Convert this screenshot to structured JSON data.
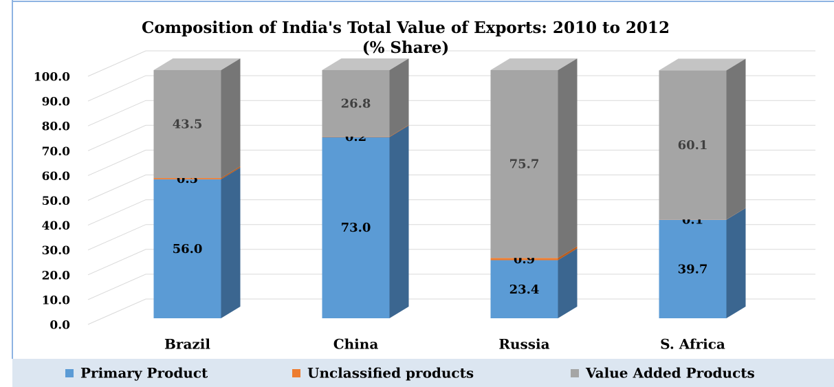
{
  "chart_data": {
    "type": "stacked-bar-3d",
    "title": "Composition of India's Total Value of Exports: 2010 to 2012 (% Share)",
    "categories": [
      "Brazil",
      "China",
      "Russia",
      "S. Africa"
    ],
    "series": [
      {
        "name": "Primary Product",
        "color": "#5b9bd5",
        "side_color": "#3b6690",
        "label_color": "#000000",
        "values": [
          56.0,
          73.0,
          23.4,
          39.7
        ],
        "value_labels": [
          "56.0",
          "73.0",
          "23.4",
          "39.7"
        ]
      },
      {
        "name": "Unclassified products",
        "color": "#ed7d31",
        "side_color": "#b85d20",
        "label_color": "#000000",
        "values": [
          0.5,
          0.2,
          0.9,
          0.1
        ],
        "value_labels": [
          "0.5",
          "0.2",
          "0.9",
          "0.1"
        ]
      },
      {
        "name": "Value Added Products",
        "color": "#a5a5a5",
        "side_color": "#767676",
        "label_color": "#404040",
        "values": [
          43.5,
          26.8,
          75.7,
          60.1
        ],
        "value_labels": [
          "43.5",
          "26.8",
          "75.7",
          "60.1"
        ]
      }
    ],
    "ylim": [
      0,
      100
    ],
    "yticks": [
      {
        "value": 0,
        "label": "0.0"
      },
      {
        "value": 10,
        "label": "10.0"
      },
      {
        "value": 20,
        "label": "20.0"
      },
      {
        "value": 30,
        "label": "30.0"
      },
      {
        "value": 40,
        "label": "40.0"
      },
      {
        "value": 50,
        "label": "50.0"
      },
      {
        "value": 60,
        "label": "60.0"
      },
      {
        "value": 70,
        "label": "70.0"
      },
      {
        "value": 80,
        "label": "80.0"
      },
      {
        "value": 90,
        "label": "90.0"
      },
      {
        "value": 100,
        "label": "100.0"
      }
    ],
    "grid": true,
    "legend": "bottom"
  }
}
